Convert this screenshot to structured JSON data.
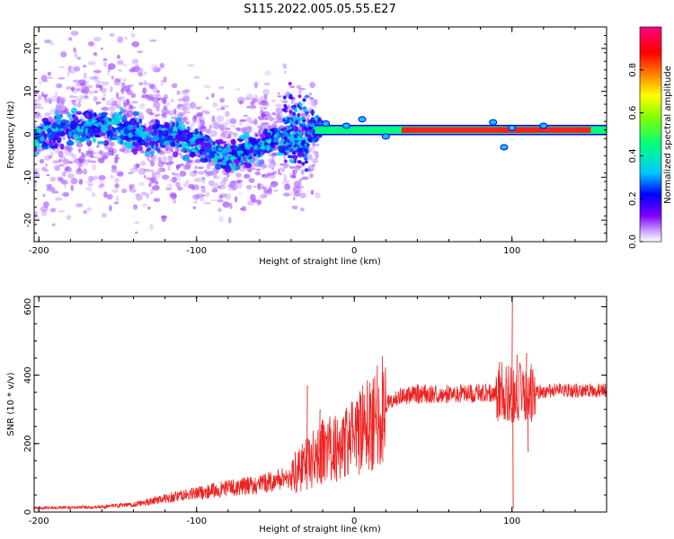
{
  "title": "S115.2022.005.05.55.E27",
  "colors": {
    "snr_line": "#ee2222",
    "axis": "#000000",
    "colormap": [
      "#ffffff",
      "#c8a0ff",
      "#8000ff",
      "#0000ff",
      "#00c8ff",
      "#00ff80",
      "#80ff00",
      "#ffff00",
      "#ff8000",
      "#ff0000",
      "#ff0080"
    ]
  },
  "chart_data": [
    {
      "type": "heatmap",
      "title": "S115.2022.005.05.55.E27",
      "xlabel": "Height of straight line (km)",
      "ylabel": "Frequency (Hz)",
      "xlim": [
        -203,
        160
      ],
      "ylim": [
        -25,
        25
      ],
      "x_ticks": [
        "-200",
        "-100",
        "0",
        "100"
      ],
      "y_ticks": [
        "-20",
        "-10",
        "0",
        "10",
        "20"
      ],
      "colorbar": {
        "label": "Normalized spectral amplitude",
        "range": [
          0,
          1
        ],
        "ticks": [
          "0.0",
          "0.2",
          "0.4",
          "0.6",
          "0.8"
        ]
      },
      "zero_band_hz": [
        0,
        2
      ]
    },
    {
      "type": "line",
      "xlabel": "Height of straight line (km)",
      "ylabel": "SNR (10 * v/v)",
      "xlim": [
        -203,
        160
      ],
      "ylim": [
        0,
        630
      ],
      "x_ticks": [
        "-200",
        "-100",
        "0",
        "100"
      ],
      "y_ticks": [
        "0",
        "200",
        "400",
        "600"
      ],
      "trend": {
        "x": [
          -203,
          -160,
          -140,
          -120,
          -100,
          -80,
          -60,
          -40,
          -30,
          -20,
          -10,
          0,
          10,
          20,
          30,
          40,
          60,
          80,
          90,
          95,
          100,
          105,
          110,
          130,
          160
        ],
        "y": [
          12,
          15,
          22,
          40,
          55,
          70,
          80,
          105,
          140,
          180,
          190,
          215,
          260,
          315,
          340,
          345,
          345,
          348,
          350,
          355,
          340,
          350,
          350,
          355,
          355
        ]
      },
      "spikes": [
        {
          "x": -30,
          "y": 370
        },
        {
          "x": -22,
          "y": 300
        },
        {
          "x": 8,
          "y": 385
        },
        {
          "x": 10,
          "y": 150
        },
        {
          "x": 100,
          "y": 630
        },
        {
          "x": 100.5,
          "y": 10
        },
        {
          "x": 103,
          "y": 460
        },
        {
          "x": 109,
          "y": 465
        },
        {
          "x": 110,
          "y": 175
        }
      ]
    }
  ]
}
